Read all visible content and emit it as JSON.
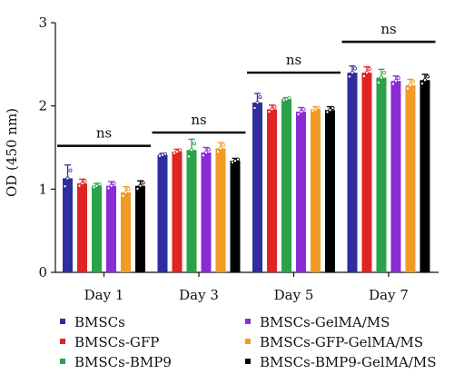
{
  "chart_data": {
    "type": "bar",
    "title": "",
    "xlabel": "",
    "ylabel": "OD (450 nm)",
    "ylim": [
      0,
      3
    ],
    "yticks": [
      "0",
      "1",
      "2",
      "3"
    ],
    "categories": [
      "Day 1",
      "Day 3",
      "Day 5",
      "Day 7"
    ],
    "series": [
      {
        "name": "BMSCs",
        "color": "#2e2e9e",
        "values": [
          1.13,
          1.41,
          2.04,
          2.4
        ],
        "errors": [
          0.16,
          0.02,
          0.11,
          0.08
        ]
      },
      {
        "name": "BMSCs-GFP",
        "color": "#e02424",
        "values": [
          1.07,
          1.45,
          1.96,
          2.4
        ],
        "errors": [
          0.05,
          0.03,
          0.05,
          0.07
        ]
      },
      {
        "name": "BMSCs-BMP9",
        "color": "#2aa24a",
        "values": [
          1.04,
          1.47,
          2.08,
          2.34
        ],
        "errors": [
          0.03,
          0.13,
          0.02,
          0.1
        ]
      },
      {
        "name": "BMSCs-GelMA/MS",
        "color": "#8a2bd6",
        "values": [
          1.04,
          1.44,
          1.93,
          2.3
        ],
        "errors": [
          0.05,
          0.06,
          0.05,
          0.06
        ]
      },
      {
        "name": "BMSCs-GFP-GelMA/MS",
        "color": "#f29a26",
        "values": [
          0.96,
          1.49,
          1.96,
          2.25
        ],
        "errors": [
          0.07,
          0.07,
          0.03,
          0.07
        ]
      },
      {
        "name": "BMSCs-BMP9-GelMA/MS",
        "color": "#000000",
        "values": [
          1.04,
          1.34,
          1.95,
          2.31
        ],
        "errors": [
          0.06,
          0.03,
          0.04,
          0.07
        ]
      }
    ],
    "significance": [
      {
        "category": "Day 1",
        "label": "ns",
        "level": 1.52
      },
      {
        "category": "Day 3",
        "label": "ns",
        "level": 1.68
      },
      {
        "category": "Day 5",
        "label": "ns",
        "level": 2.4
      },
      {
        "category": "Day 7",
        "label": "ns",
        "level": 2.77
      }
    ],
    "legend_position": "bottom",
    "grid": false
  }
}
